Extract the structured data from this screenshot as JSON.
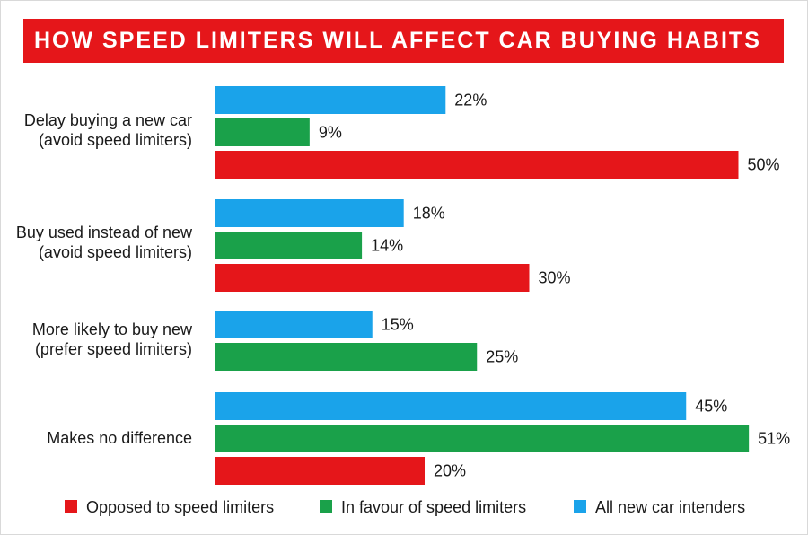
{
  "title": "HOW SPEED LIMITERS WILL AFFECT CAR BUYING HABITS",
  "colors": {
    "title_bg": "#e5161a",
    "all_new_car_intenders": "#1aa3ea",
    "in_favour": "#1aa14a",
    "opposed": "#e5161a"
  },
  "chart_data": {
    "type": "bar",
    "orientation": "horizontal",
    "title": "HOW SPEED LIMITERS WILL AFFECT CAR BUYING HABITS",
    "categories": [
      [
        "Delay buying a new car",
        "(avoid speed limiters)"
      ],
      [
        "Buy used instead of new",
        "(avoid speed limiters)"
      ],
      [
        "More likely to buy new",
        "(prefer speed limiters)"
      ],
      [
        "Makes no difference"
      ]
    ],
    "series": [
      {
        "name": "All new car intenders",
        "color": "#1aa3ea",
        "values": [
          22,
          18,
          15,
          45
        ],
        "labels": [
          "22%",
          "18%",
          "15%",
          "45%"
        ]
      },
      {
        "name": "In favour of speed limiters",
        "color": "#1aa14a",
        "values": [
          9,
          14,
          25,
          51
        ],
        "labels": [
          "9%",
          "14%",
          "25%",
          "51%"
        ]
      },
      {
        "name": "Opposed to speed limiters",
        "color": "#e5161a",
        "values": [
          50,
          30,
          null,
          20
        ],
        "labels": [
          "50%",
          "30%",
          "",
          "20%"
        ]
      }
    ],
    "unit": "%",
    "grid": false,
    "legend_position": "bottom",
    "legend_order": [
      "Opposed to speed limiters",
      "In favour of speed limiters",
      "All new car intenders"
    ]
  }
}
